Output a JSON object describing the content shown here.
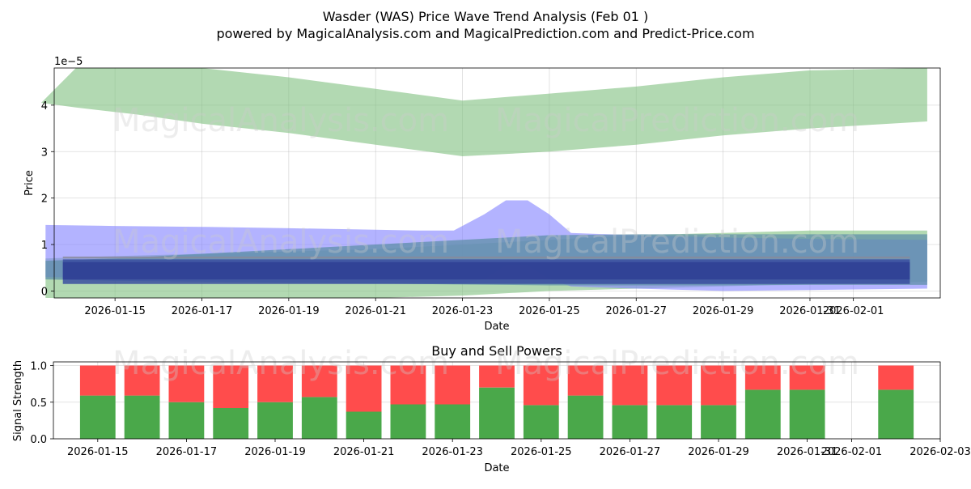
{
  "colors": {
    "green_band": "#7fbf7f",
    "blue_band": "#8080ff",
    "buy": "#4aa84a",
    "sell": "#ff4c4c"
  },
  "watermarks": {
    "left": "MagicalAnalysis.com",
    "right": "MagicalPrediction.com"
  },
  "chart_data": [
    {
      "type": "area",
      "title": "Wasder (WAS) Price Wave Trend Analysis (Feb 01 )",
      "subtitle": "powered by MagicalAnalysis.com and MagicalPrediction.com and Predict-Price.com",
      "xlabel": "Date",
      "ylabel": "Price",
      "scale_label": "1e−5",
      "ylim": [
        -0.15,
        4.8
      ],
      "yticks": [
        0,
        1,
        2,
        3,
        4
      ],
      "xlim": [
        -1.4,
        19.0
      ],
      "xticks": [
        {
          "pos": 0,
          "label": "2026-01-15"
        },
        {
          "pos": 2,
          "label": "2026-01-17"
        },
        {
          "pos": 4,
          "label": "2026-01-19"
        },
        {
          "pos": 6,
          "label": "2026-01-21"
        },
        {
          "pos": 8,
          "label": "2026-01-23"
        },
        {
          "pos": 10,
          "label": "2026-01-25"
        },
        {
          "pos": 12,
          "label": "2026-01-27"
        },
        {
          "pos": 14,
          "label": "2026-01-29"
        },
        {
          "pos": 16,
          "label": "2026-01-31"
        },
        {
          "pos": 17,
          "label": "2026-02-01"
        }
      ],
      "series": [
        {
          "name": "green-upper-band",
          "color": "#7fbf7f",
          "opacity": 0.6,
          "x": [
            -1.7,
            -0.9,
            0.5,
            2.0,
            4.0,
            6.0,
            8.0,
            10.0,
            12.0,
            14.0,
            16.0,
            18.7
          ],
          "upper": [
            4.05,
            4.8,
            4.8,
            4.8,
            4.6,
            4.35,
            4.1,
            4.25,
            4.4,
            4.6,
            4.75,
            4.8
          ],
          "lower": [
            4.05,
            3.95,
            3.8,
            3.6,
            3.4,
            3.15,
            2.9,
            3.0,
            3.15,
            3.35,
            3.5,
            3.65
          ]
        },
        {
          "name": "green-lower-band",
          "color": "#7fbf7f",
          "opacity": 0.6,
          "x": [
            -1.6,
            0.0,
            2.0,
            4.0,
            6.0,
            8.0,
            10.0,
            12.0,
            14.0,
            16.0,
            18.7
          ],
          "upper": [
            0.7,
            0.75,
            0.8,
            0.85,
            0.9,
            1.0,
            1.1,
            1.2,
            1.25,
            1.3,
            1.3
          ],
          "lower": [
            -0.15,
            -0.15,
            -0.15,
            -0.15,
            -0.15,
            -0.1,
            0.0,
            0.05,
            0.1,
            0.15,
            0.2
          ]
        },
        {
          "name": "blue-band",
          "color": "#8080ff",
          "opacity": 0.6,
          "x": [
            -1.6,
            0.0,
            2.0,
            4.0,
            6.0,
            7.0,
            7.8,
            8.5,
            9.0,
            9.5,
            10.0,
            10.5,
            11.0,
            12.0,
            14.0,
            16.0,
            18.7
          ],
          "upper": [
            1.42,
            1.4,
            1.38,
            1.35,
            1.32,
            1.3,
            1.3,
            1.65,
            1.95,
            1.95,
            1.65,
            1.25,
            1.23,
            1.2,
            1.15,
            1.12,
            1.1
          ],
          "lower": [
            0.3,
            0.28,
            0.27,
            0.25,
            0.22,
            0.2,
            0.15,
            0.25,
            0.55,
            0.55,
            0.25,
            0.1,
            0.08,
            0.05,
            0.0,
            0.02,
            0.05
          ]
        },
        {
          "name": "teal-band",
          "color": "#5f8fa8",
          "opacity": 0.75,
          "x": [
            -1.6,
            0.0,
            2.0,
            4.0,
            6.0,
            8.0,
            10.0,
            12.0,
            14.0,
            16.0,
            18.7
          ],
          "upper": [
            0.65,
            0.7,
            0.8,
            0.9,
            1.0,
            1.1,
            1.2,
            1.22,
            1.22,
            1.22,
            1.22
          ],
          "lower": [
            0.25,
            0.22,
            0.2,
            0.18,
            0.16,
            0.14,
            0.12,
            0.12,
            0.12,
            0.13,
            0.13
          ]
        },
        {
          "name": "dark-blue-bar",
          "color": "#3a4ea0",
          "opacity": 0.85,
          "x": [
            -1.2,
            18.3
          ],
          "upper": [
            0.68,
            0.68
          ],
          "lower": [
            0.15,
            0.15
          ]
        },
        {
          "name": "dark-blue-core",
          "color": "#2f3f94",
          "opacity": 0.85,
          "x": [
            -1.2,
            18.3
          ],
          "upper": [
            0.62,
            0.62
          ],
          "lower": [
            0.25,
            0.25
          ]
        },
        {
          "name": "gray-mid-line",
          "color": "#8a8a9a",
          "opacity": 0.8,
          "x": [
            -1.2,
            18.3
          ],
          "upper": [
            0.74,
            0.74
          ],
          "lower": [
            0.7,
            0.7
          ]
        }
      ]
    },
    {
      "type": "bar",
      "title": "Buy and Sell Powers",
      "xlabel": "Date",
      "ylabel": "Signal Strength",
      "ylim": [
        0,
        1.05
      ],
      "yticks": [
        0.0,
        0.5,
        1.0
      ],
      "xlim": [
        -1.0,
        19.0
      ],
      "xticks": [
        {
          "pos": 0,
          "label": "2026-01-15"
        },
        {
          "pos": 2,
          "label": "2026-01-17"
        },
        {
          "pos": 4,
          "label": "2026-01-19"
        },
        {
          "pos": 6,
          "label": "2026-01-21"
        },
        {
          "pos": 8,
          "label": "2026-01-23"
        },
        {
          "pos": 10,
          "label": "2026-01-25"
        },
        {
          "pos": 12,
          "label": "2026-01-27"
        },
        {
          "pos": 14,
          "label": "2026-01-29"
        },
        {
          "pos": 16,
          "label": "2026-01-31"
        },
        {
          "pos": 17,
          "label": "2026-02-01"
        },
        {
          "pos": 19,
          "label": "2026-02-03"
        }
      ],
      "x": [
        0,
        1,
        2,
        3,
        4,
        5,
        6,
        7,
        8,
        9,
        10,
        11,
        12,
        13,
        14,
        15,
        16,
        18
      ],
      "buy": [
        0.59,
        0.59,
        0.5,
        0.42,
        0.5,
        0.57,
        0.37,
        0.47,
        0.47,
        0.7,
        0.46,
        0.59,
        0.46,
        0.46,
        0.46,
        0.67,
        0.67,
        0.67
      ],
      "sell": [
        0.41,
        0.41,
        0.5,
        0.58,
        0.5,
        0.43,
        0.63,
        0.53,
        0.53,
        0.3,
        0.54,
        0.41,
        0.54,
        0.54,
        0.54,
        0.33,
        0.33,
        0.33
      ]
    }
  ]
}
